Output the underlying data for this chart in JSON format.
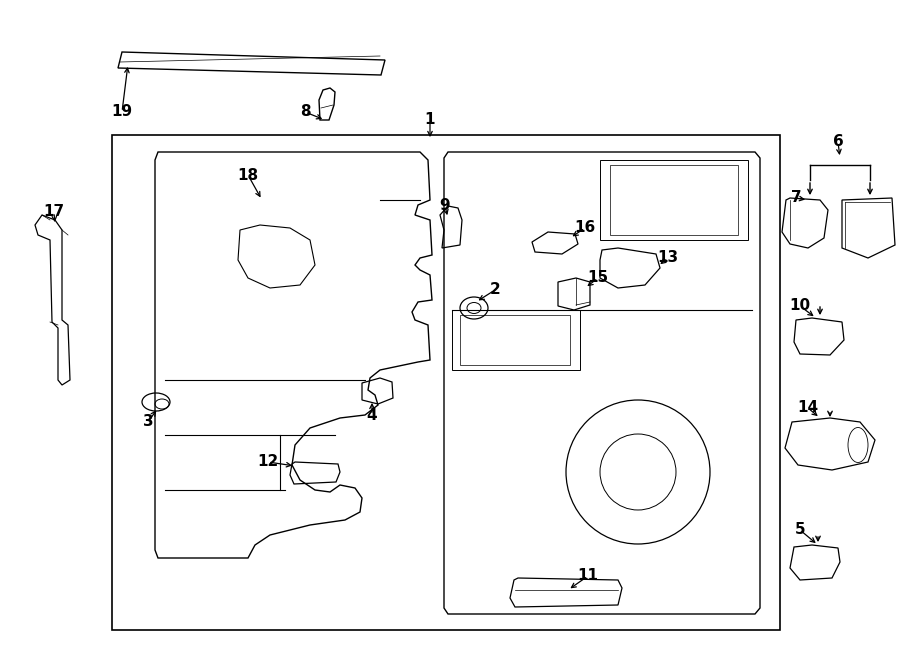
{
  "bg_color": "#ffffff",
  "line_color": "#000000",
  "figw": 9.0,
  "figh": 6.61,
  "dpi": 100
}
